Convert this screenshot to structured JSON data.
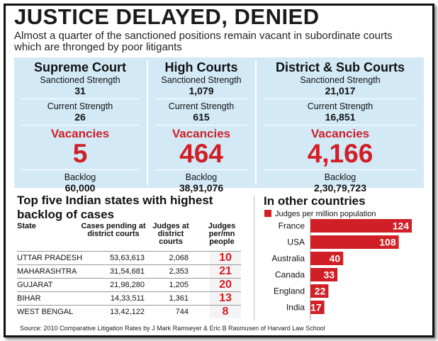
{
  "headline": "JUSTICE DELAYED, DENIED",
  "subhead": "Almost a quarter of the sanctioned positions remain vacant in subordinate courts which are thronged by poor litigants",
  "courts": [
    {
      "name": "Supreme Court",
      "sanctioned_label": "Sanctioned Strength",
      "sanctioned": "31",
      "current_label": "Current Strength",
      "current": "26",
      "vacancies_label": "Vacancies",
      "vacancies": "5",
      "backlog_label": "Backlog",
      "backlog": "60,000"
    },
    {
      "name": "High Courts",
      "sanctioned_label": "Sanctioned Strength",
      "sanctioned": "1,079",
      "current_label": "Current Strength",
      "current": "615",
      "vacancies_label": "Vacancies",
      "vacancies": "464",
      "backlog_label": "Backlog",
      "backlog": "38,91,076"
    },
    {
      "name": "District & Sub Courts",
      "sanctioned_label": "Sanctioned Strength",
      "sanctioned": "21,017",
      "current_label": "Current Strength",
      "current": "16,851",
      "vacancies_label": "Vacancies",
      "vacancies": "4,166",
      "backlog_label": "Backlog",
      "backlog": "2,30,79,723"
    }
  ],
  "states_section": {
    "title": "Top five Indian states with highest  backlog of cases",
    "headers": {
      "state": "State",
      "cases": "Cases pending at district courts",
      "judges": "Judges at district courts",
      "per_mn": "Judges per/mn people"
    },
    "rows": [
      {
        "state": "UTTAR PRADESH",
        "cases": "53,63,613",
        "judges": "2,068",
        "per_mn": "10"
      },
      {
        "state": "MAHARASHTRA",
        "cases": "31,54,681",
        "judges": "2,353",
        "per_mn": "21"
      },
      {
        "state": "GUJARAT",
        "cases": "21,98,280",
        "judges": "1,205",
        "per_mn": "20"
      },
      {
        "state": "BIHAR",
        "cases": "14,33,511",
        "judges": "1,361",
        "per_mn": "13"
      },
      {
        "state": "WEST BENGAL",
        "cases": "13,42,122",
        "judges": "744",
        "per_mn": "8"
      }
    ]
  },
  "chart_data": {
    "type": "bar",
    "orientation": "horizontal",
    "title": "In other countries",
    "categories": [
      "France",
      "USA",
      "Australia",
      "Canada",
      "England",
      "India"
    ],
    "series": [
      {
        "name": "Judges per million population",
        "values": [
          124,
          108,
          40,
          33,
          22,
          17
        ]
      }
    ],
    "xlim": [
      0,
      130
    ],
    "grid": false,
    "legend": "top-left",
    "color": "#d01f26"
  },
  "source": "Source: 2010 Comparative Litigation Rates by J Mark Ramseyer & Eric B Rasmusen of Harvard Law School",
  "colors": {
    "accent": "#d01f26",
    "panel": "#d3e9f6"
  }
}
